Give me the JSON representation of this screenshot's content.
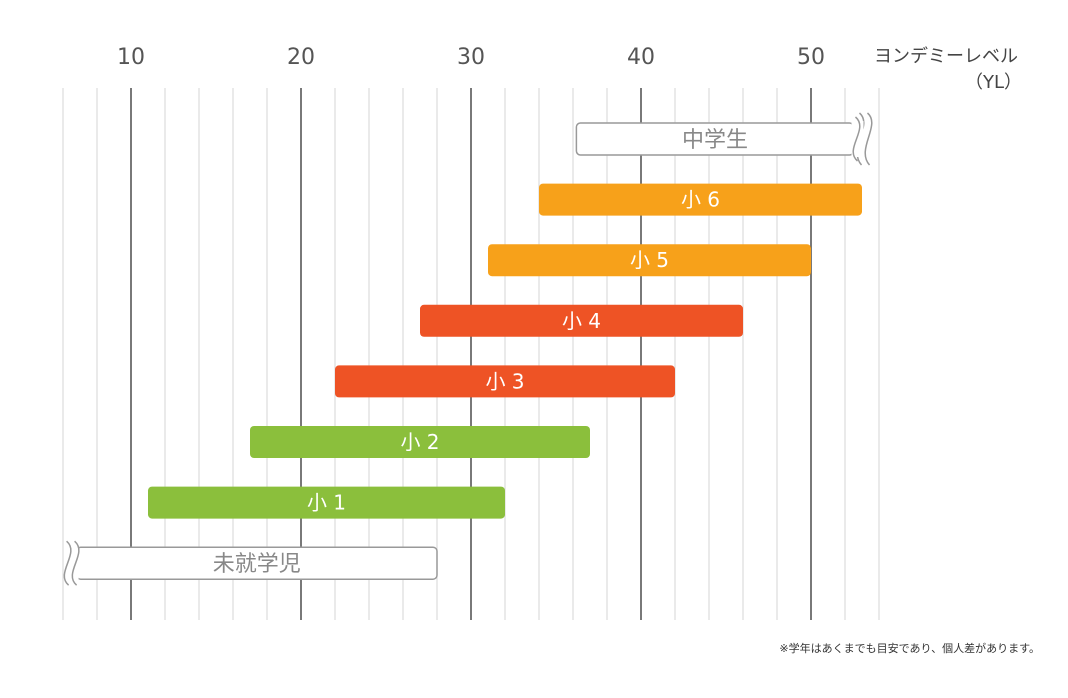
{
  "chart_data": {
    "type": "range-bar",
    "axis_title": "ヨンデミーレベル",
    "axis_unit": "（YL）",
    "x_ticks": [
      10,
      20,
      30,
      40,
      50
    ],
    "x_range": [
      6,
      54
    ],
    "grid_step": 2,
    "bars": [
      {
        "label": "中学生",
        "start": 36.2,
        "end": 52.5,
        "style": "outline",
        "open_end": "right"
      },
      {
        "label": "小 6",
        "start": 34,
        "end": 53,
        "color": "#f7a11a"
      },
      {
        "label": "小 5",
        "start": 31,
        "end": 50,
        "color": "#f7a11a"
      },
      {
        "label": "小 4",
        "start": 27,
        "end": 46,
        "color": "#ee5325"
      },
      {
        "label": "小 3",
        "start": 22,
        "end": 42,
        "color": "#ee5325"
      },
      {
        "label": "小 2",
        "start": 17,
        "end": 37,
        "color": "#8bbf3c"
      },
      {
        "label": "小 1",
        "start": 11,
        "end": 32,
        "color": "#8bbf3c"
      },
      {
        "label": "未就学児",
        "start": 6.8,
        "end": 28,
        "style": "outline",
        "open_end": "left"
      }
    ]
  },
  "footnote": "※学年はあくまでも目安であり、個人差があります。"
}
